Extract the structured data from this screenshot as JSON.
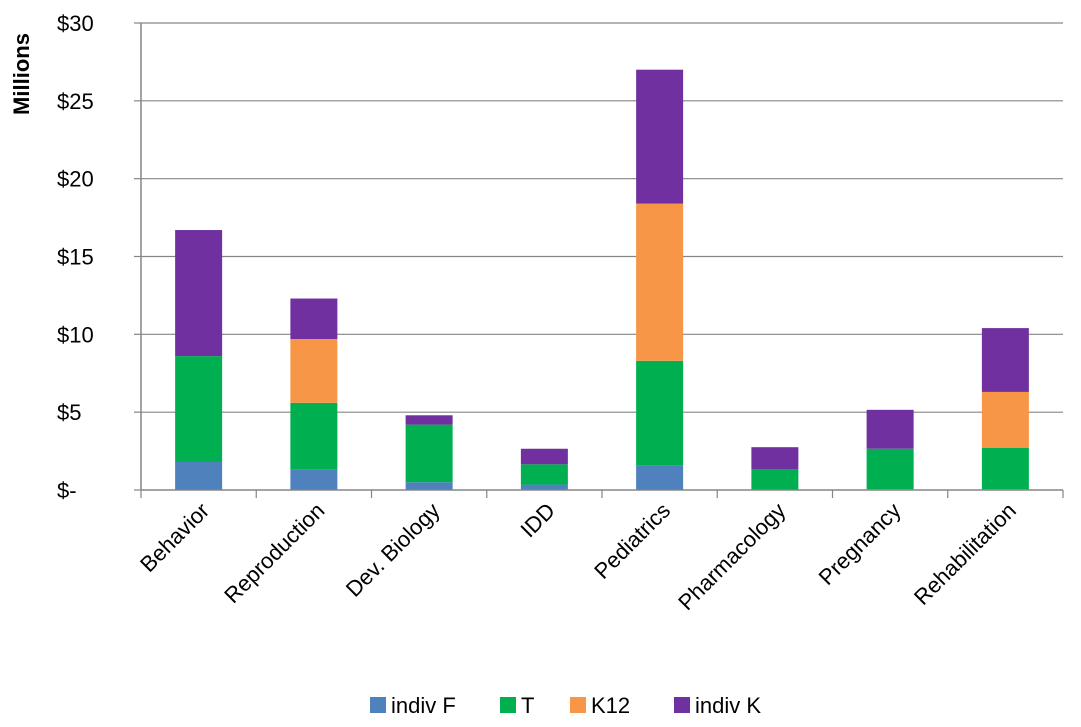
{
  "chart_data": {
    "type": "bar",
    "stacked": true,
    "title": "",
    "xlabel": "",
    "ylabel": "Millions",
    "ylim": [
      0,
      30
    ],
    "yticks": [
      0,
      5,
      10,
      15,
      20,
      25,
      30
    ],
    "ytick_labels": [
      "$-",
      "$5",
      "$10",
      "$15",
      "$20",
      "$25",
      "$30"
    ],
    "grid": true,
    "legend_position": "bottom",
    "categories": [
      "Behavior",
      "Reproduction",
      "Dev. Biology",
      "IDD",
      "Pediatrics",
      "Pharmacology",
      "Pregnancy",
      "Rehabilitation"
    ],
    "series": [
      {
        "name": "indiv F",
        "color": "#4F81BD",
        "values": [
          1.8,
          1.3,
          0.5,
          0.35,
          1.6,
          0.0,
          0.05,
          0.05
        ]
      },
      {
        "name": "T",
        "color": "#00B050",
        "values": [
          6.8,
          4.3,
          3.7,
          1.3,
          6.7,
          1.35,
          2.6,
          2.65
        ]
      },
      {
        "name": "K12",
        "color": "#F79646",
        "values": [
          0.0,
          4.1,
          0.0,
          0.0,
          10.1,
          0.0,
          0.0,
          3.6
        ]
      },
      {
        "name": "indiv K",
        "color": "#7030A0",
        "values": [
          8.1,
          2.6,
          0.6,
          1.0,
          8.6,
          1.4,
          2.5,
          4.1
        ]
      }
    ]
  }
}
